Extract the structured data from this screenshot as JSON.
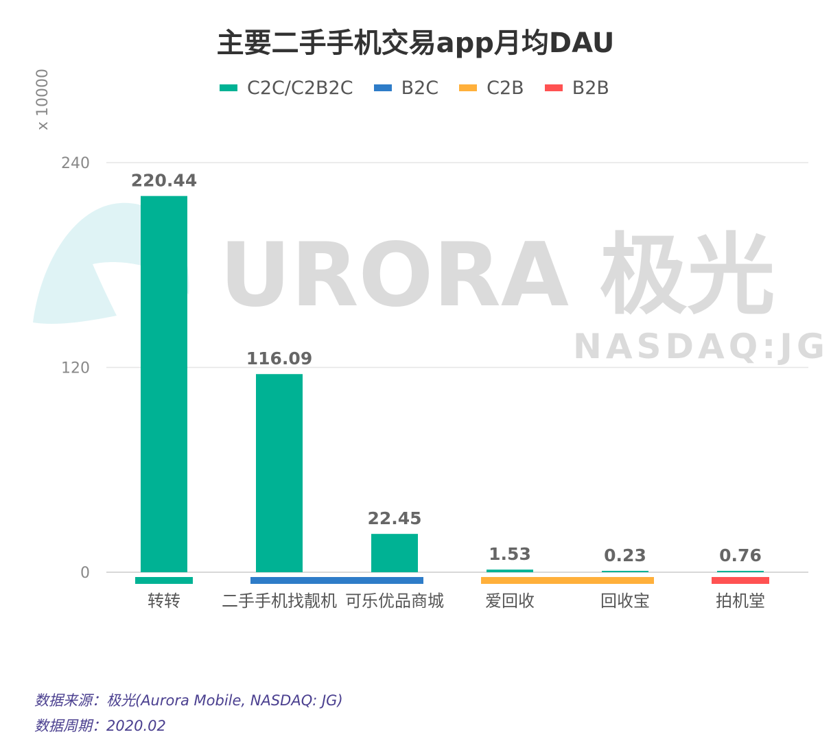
{
  "title": "主要二手手机交易app月均DAU",
  "legend": [
    {
      "label": "C2C/C2B2C",
      "color": "#00b294"
    },
    {
      "label": "B2C",
      "color": "#2e7cc8"
    },
    {
      "label": "C2B",
      "color": "#ffb03b"
    },
    {
      "label": "B2B",
      "color": "#ff5252"
    }
  ],
  "unit_label": "x 10000",
  "watermark": {
    "brand": "URORA 极光",
    "ticker": "NASDAQ:JG"
  },
  "source_lines": {
    "source": "数据来源：极光(Aurora Mobile, NASDAQ: JG)",
    "period": "数据周期：2020.02"
  },
  "chart_data": {
    "type": "bar",
    "title": "主要二手手机交易app月均DAU",
    "ylabel": "x 10000",
    "xlabel": "",
    "ylim": [
      0,
      240
    ],
    "yticks": [
      0,
      120,
      240
    ],
    "grid": true,
    "legend_position": "top",
    "categories": [
      "转转",
      "二手手机找靓机",
      "可乐优品商城",
      "爱回收",
      "回收宝",
      "拍机堂"
    ],
    "values": [
      220.44,
      116.09,
      22.45,
      1.53,
      0.23,
      0.76
    ],
    "value_labels": [
      "220.44",
      "116.09",
      "22.45",
      "1.53",
      "0.23",
      "0.76"
    ],
    "bar_color": "#00b294",
    "groups": [
      {
        "name": "C2C/C2B2C",
        "categories": [
          "转转"
        ],
        "color": "#00b294"
      },
      {
        "name": "B2C",
        "categories": [
          "二手手机找靓机",
          "可乐优品商城"
        ],
        "color": "#2e7cc8"
      },
      {
        "name": "C2B",
        "categories": [
          "爱回收",
          "回收宝"
        ],
        "color": "#ffb03b"
      },
      {
        "name": "B2B",
        "categories": [
          "拍机堂"
        ],
        "color": "#ff5252"
      }
    ]
  }
}
